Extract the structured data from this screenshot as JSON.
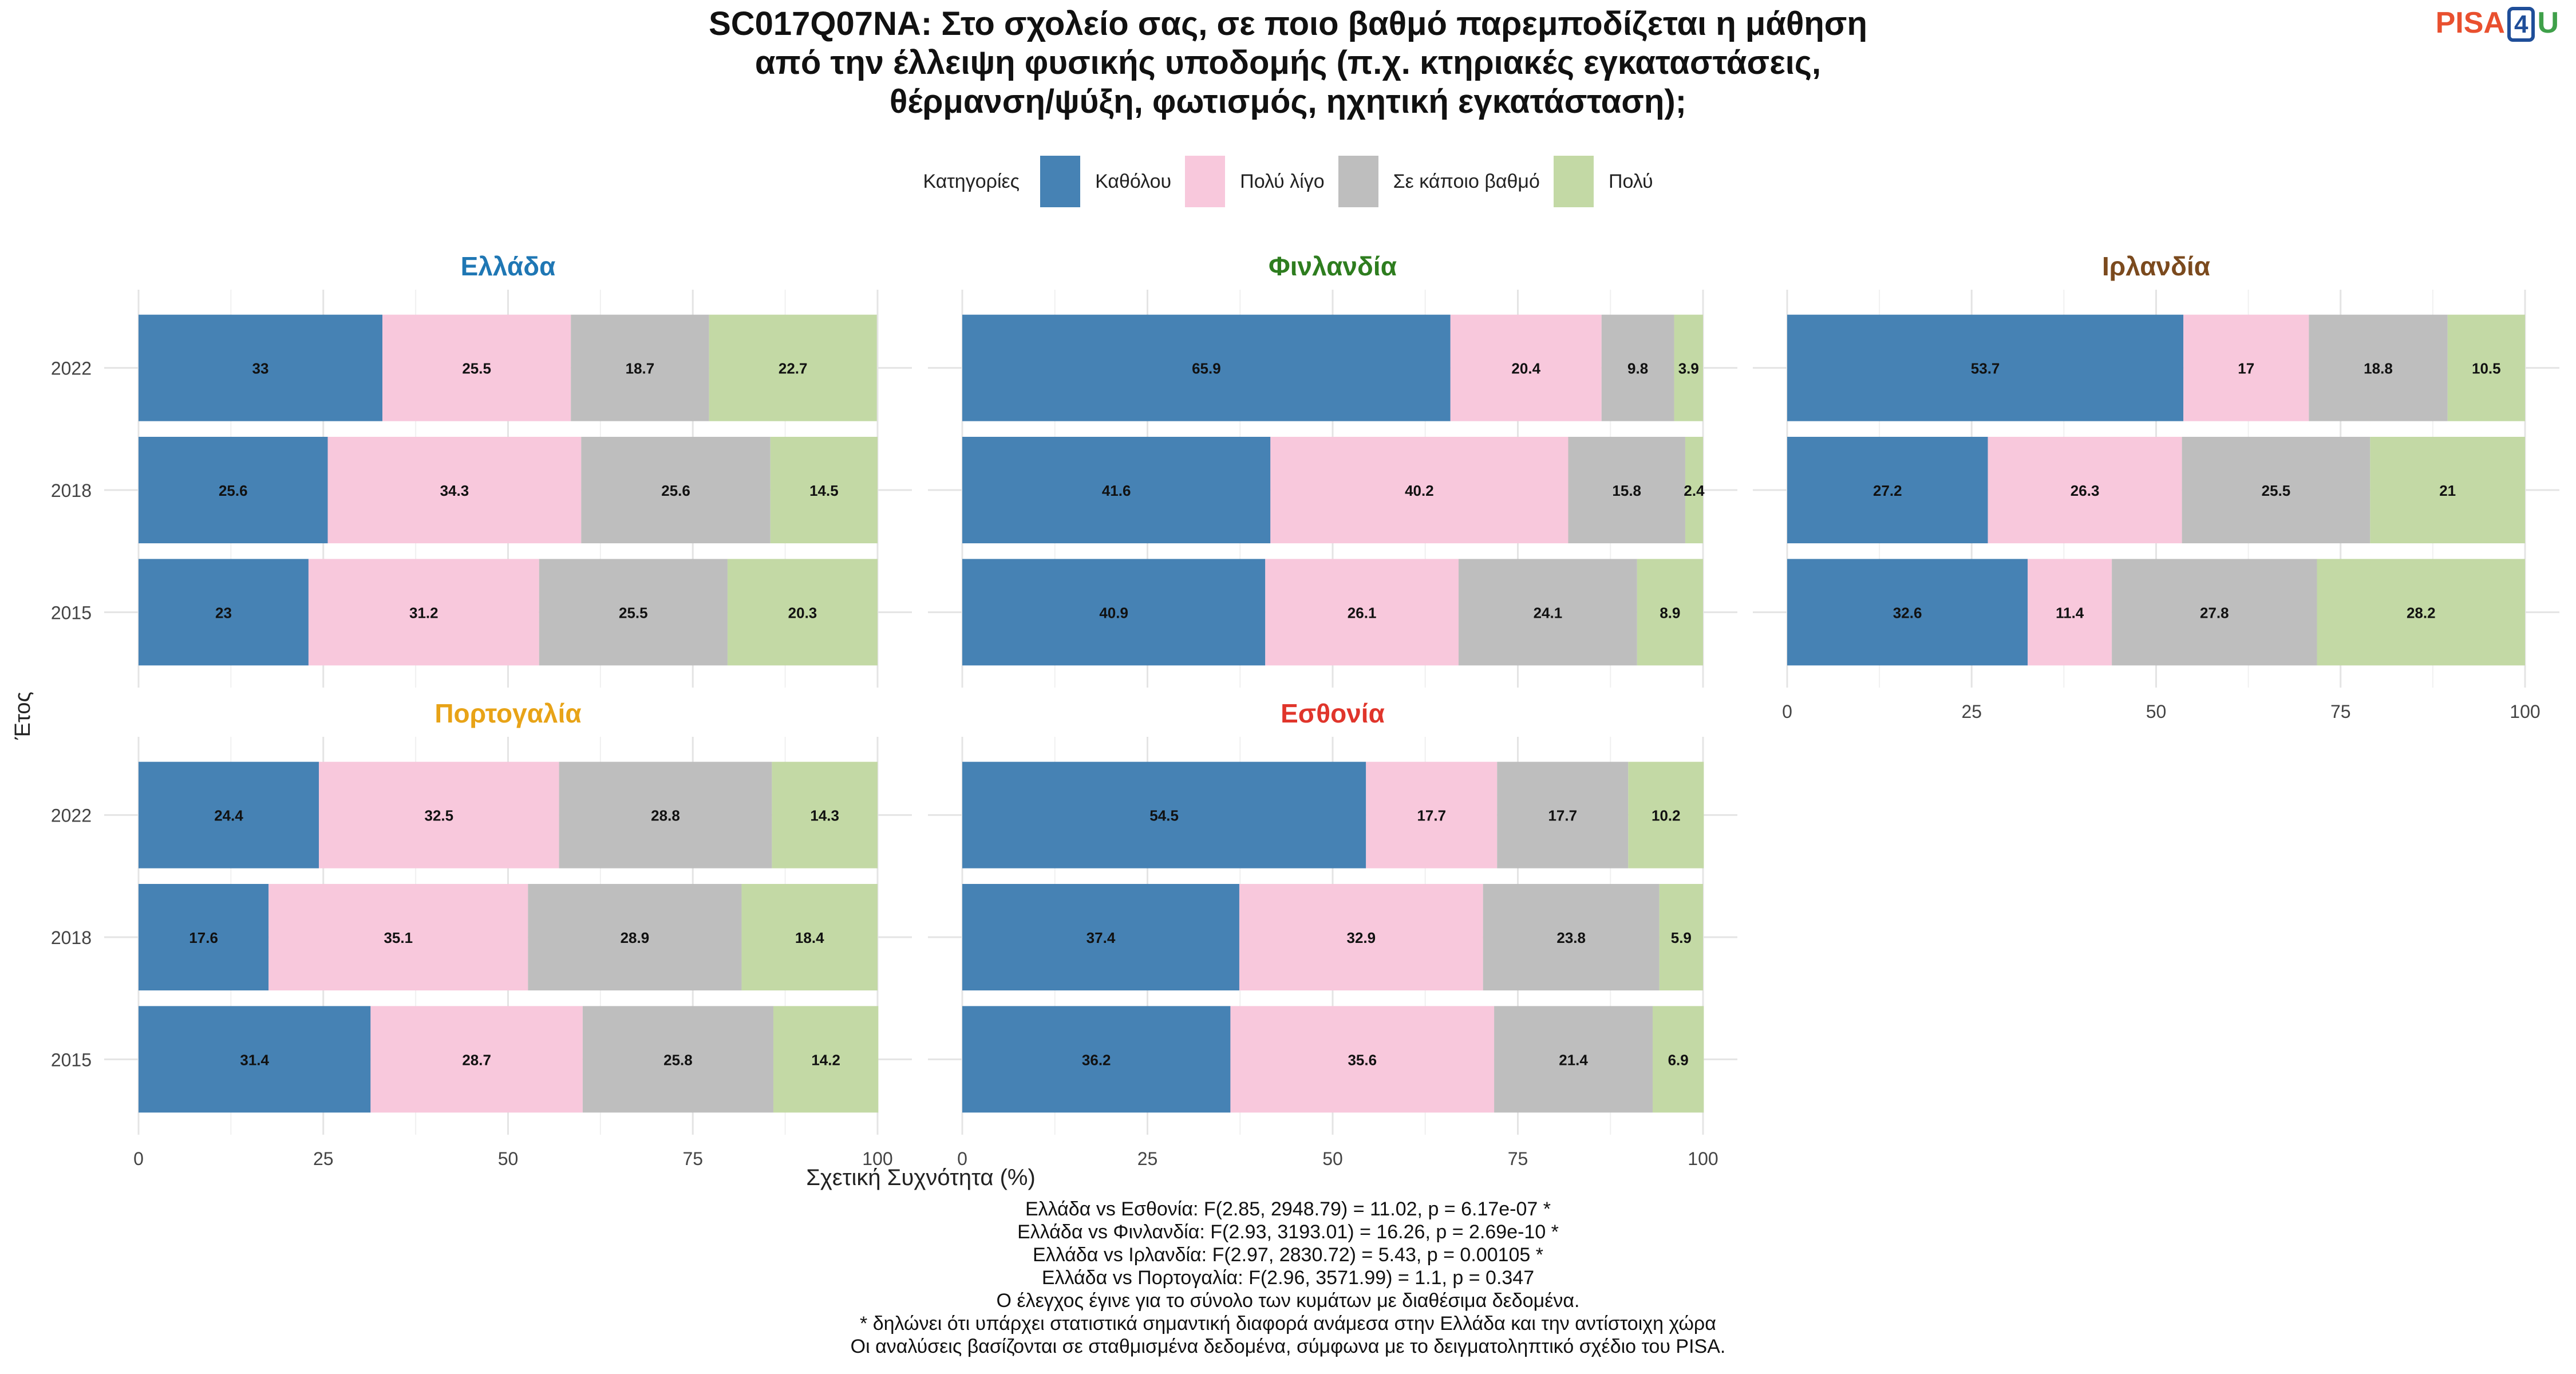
{
  "title_lines": [
    "SC017Q07NA: Στο σχολείο σας, σε ποιο βαθμό παρεμποδίζεται η μάθηση",
    "από την έλλειψη φυσικής υποδομής (π.χ. κτηριακές εγκαταστάσεις,",
    "θέρμανση/ψύξη, φωτισμός, ηχητική εγκατάσταση);"
  ],
  "logo": {
    "left": "PISA",
    "mid": "4",
    "right": "U"
  },
  "legend": {
    "title": "Κατηγορίες",
    "items": [
      {
        "label": "Καθόλου",
        "color": "#4682b4"
      },
      {
        "label": "Πολύ λίγο",
        "color": "#f8c8dc"
      },
      {
        "label": "Σε κάποιο βαθμό",
        "color": "#bebebe"
      },
      {
        "label": "Πολύ",
        "color": "#c3d9a5"
      }
    ]
  },
  "chart_data": {
    "type": "bar",
    "orientation": "horizontal-stacked",
    "ylabel": "Έτος",
    "xlabel": "Σχετική Συχνότητα (%)",
    "xlim": [
      0,
      100
    ],
    "xticks": [
      0,
      25,
      50,
      75,
      100
    ],
    "categories": [
      "2022",
      "2018",
      "2015"
    ],
    "series_names": [
      "Καθόλου",
      "Πολύ λίγο",
      "Σε κάποιο βαθμό",
      "Πολύ"
    ],
    "colors": [
      "#4682b4",
      "#f8c8dc",
      "#bebebe",
      "#c3d9a5"
    ],
    "grid": true,
    "legend_position": "top",
    "panels": [
      {
        "title": "Ελλάδα",
        "title_color": "#1f77b4",
        "values": [
          [
            33,
            25.5,
            18.7,
            22.7
          ],
          [
            25.6,
            34.3,
            25.6,
            14.5
          ],
          [
            23,
            31.2,
            25.5,
            20.3
          ]
        ]
      },
      {
        "title": "Φινλανδία",
        "title_color": "#2e7d1f",
        "values": [
          [
            65.9,
            20.4,
            9.8,
            3.9
          ],
          [
            41.6,
            40.2,
            15.8,
            2.4
          ],
          [
            40.9,
            26.1,
            24.1,
            8.9
          ]
        ]
      },
      {
        "title": "Ιρλανδία",
        "title_color": "#7b4a1e",
        "values": [
          [
            53.7,
            17,
            18.8,
            10.5
          ],
          [
            27.2,
            26.3,
            25.5,
            21
          ],
          [
            32.6,
            11.4,
            27.8,
            28.2
          ]
        ]
      },
      {
        "title": "Πορτογαλία",
        "title_color": "#e8a317",
        "values": [
          [
            24.4,
            32.5,
            28.8,
            14.3
          ],
          [
            17.6,
            35.1,
            28.9,
            18.4
          ],
          [
            31.4,
            28.7,
            25.8,
            14.2
          ]
        ]
      },
      {
        "title": "Εσθονία",
        "title_color": "#e0352b",
        "values": [
          [
            54.5,
            17.7,
            17.7,
            10.2
          ],
          [
            37.4,
            32.9,
            23.8,
            5.9
          ],
          [
            36.2,
            35.6,
            21.4,
            6.9
          ]
        ]
      }
    ]
  },
  "footer_lines": [
    "Ελλάδα vs Εσθονία: F(2.85, 2948.79) = 11.02, p = 6.17e-07 *",
    "Ελλάδα vs Φινλανδία: F(2.93, 3193.01) = 16.26, p = 2.69e-10 *",
    "Ελλάδα vs Ιρλανδία: F(2.97, 2830.72) = 5.43, p = 0.00105 *",
    "Ελλάδα vs Πορτογαλία: F(2.96, 3571.99) = 1.1, p = 0.347",
    "Ο έλεγχος έγινε για το σύνολο των κυμάτων με διαθέσιμα δεδομένα.",
    "* δηλώνει ότι υπάρχει στατιστικά σημαντική διαφορά ανάμεσα στην Ελλάδα και την αντίστοιχη χώρα",
    "Οι αναλύσεις βασίζονται σε σταθμισμένα δεδομένα, σύμφωνα με το δειγματοληπτικό σχέδιο του PISA."
  ]
}
